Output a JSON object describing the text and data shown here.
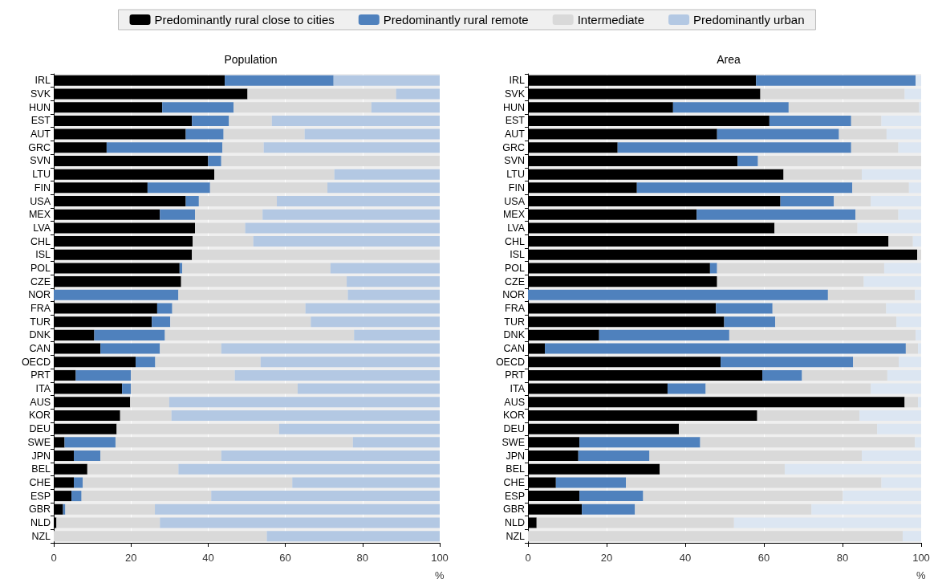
{
  "chart_data": [
    {
      "type": "bar",
      "title": "Population",
      "xlabel": "%",
      "orientation": "horizontal",
      "stacked": true,
      "legend": "top",
      "grid": "x",
      "xlim": [
        0,
        100
      ],
      "xticks": [
        0,
        20,
        40,
        60,
        80,
        100
      ],
      "categories": [
        "IRL",
        "SVK",
        "HUN",
        "EST",
        "AUT",
        "GRC",
        "SVN",
        "LTU",
        "FIN",
        "USA",
        "MEX",
        "LVA",
        "CHL",
        "ISL",
        "POL",
        "CZE",
        "NOR",
        "FRA",
        "TUR",
        "DNK",
        "CAN",
        "OECD",
        "PRT",
        "ITA",
        "AUS",
        "KOR",
        "DEU",
        "SWE",
        "JPN",
        "BEL",
        "CHE",
        "ESP",
        "GBR",
        "NLD",
        "NZL"
      ],
      "series": [
        {
          "name": "Predominantly rural close to cities",
          "color": "#000000",
          "values": [
            44.3,
            50.2,
            28.1,
            35.8,
            34.2,
            13.7,
            40.0,
            41.6,
            24.3,
            34.2,
            27.5,
            36.6,
            36.0,
            35.8,
            32.6,
            33.0,
            0,
            26.8,
            25.4,
            10.5,
            12.1,
            21.2,
            5.7,
            17.7,
            19.8,
            17.2,
            16.3,
            2.8,
            5.2,
            8.7,
            5.2,
            4.6,
            2.4,
            0.7,
            0
          ]
        },
        {
          "name": "Predominantly rural remote",
          "color": "#4f81bd",
          "values": [
            28.2,
            0,
            18.5,
            9.6,
            9.8,
            30.0,
            3.4,
            0,
            16.2,
            3.4,
            9.1,
            0,
            0,
            0,
            0.7,
            0,
            32.3,
            3.9,
            4.8,
            18.3,
            15.4,
            5.1,
            14.3,
            2.3,
            0,
            0,
            0,
            13.2,
            6.9,
            0,
            2.3,
            2.6,
            0.6,
            0,
            0
          ]
        },
        {
          "name": "Intermediate",
          "color": "#d9d9d9",
          "values": [
            0,
            38.5,
            35.7,
            11.1,
            21.0,
            10.7,
            56.6,
            31.1,
            30.4,
            20.2,
            17.5,
            13.0,
            15.7,
            64.2,
            38.4,
            42.9,
            43.9,
            34.5,
            36.4,
            49.0,
            15.9,
            27.3,
            26.9,
            43.2,
            10.1,
            13.3,
            42.1,
            61.5,
            31.3,
            23.6,
            54.3,
            33.6,
            23.2,
            26.8,
            55.2
          ]
        },
        {
          "name": "Predominantly urban",
          "color": "#b3c8e3",
          "values": [
            27.5,
            11.3,
            17.7,
            43.5,
            35.0,
            45.6,
            0,
            27.3,
            29.1,
            42.2,
            45.9,
            50.4,
            48.3,
            0,
            28.3,
            24.1,
            23.8,
            34.8,
            33.4,
            22.2,
            56.6,
            46.4,
            53.1,
            36.8,
            70.1,
            69.5,
            41.6,
            22.5,
            56.6,
            67.7,
            38.2,
            59.2,
            73.8,
            72.5,
            44.8
          ]
        }
      ]
    },
    {
      "type": "bar",
      "title": "Area",
      "xlabel": "%",
      "orientation": "horizontal",
      "stacked": true,
      "grid": "x",
      "xlim": [
        0,
        100
      ],
      "xticks": [
        0,
        20,
        40,
        60,
        80,
        100
      ],
      "categories": [
        "IRL",
        "SVK",
        "HUN",
        "EST",
        "AUT",
        "GRC",
        "SVN",
        "LTU",
        "FIN",
        "USA",
        "MEX",
        "LVA",
        "CHL",
        "ISL",
        "POL",
        "CZE",
        "NOR",
        "FRA",
        "TUR",
        "DNK",
        "CAN",
        "OECD",
        "PRT",
        "ITA",
        "AUS",
        "KOR",
        "DEU",
        "SWE",
        "JPN",
        "BEL",
        "CHE",
        "ESP",
        "GBR",
        "NLD",
        "NZL"
      ],
      "series": [
        {
          "color": "#000000",
          "values": [
            58.0,
            59.1,
            36.9,
            61.4,
            48.1,
            22.8,
            53.3,
            65.0,
            27.7,
            64.2,
            42.9,
            62.7,
            91.7,
            99.0,
            46.3,
            48.1,
            0,
            47.8,
            49.9,
            18.1,
            4.3,
            49.0,
            59.6,
            35.5,
            95.8,
            58.3,
            38.4,
            13.1,
            12.8,
            33.5,
            7.1,
            13.1,
            13.7,
            2.2,
            0
          ]
        },
        {
          "color": "#4f81bd",
          "values": [
            40.6,
            0,
            29.4,
            20.8,
            31.0,
            59.4,
            5.2,
            0,
            54.8,
            13.6,
            40.4,
            0,
            0,
            0,
            1.8,
            0,
            76.3,
            14.4,
            13.0,
            33.1,
            91.8,
            33.7,
            10.1,
            9.7,
            0,
            0,
            0,
            30.7,
            18.1,
            0,
            17.8,
            16.2,
            13.5,
            0,
            0
          ]
        },
        {
          "color": "#d9d9d9",
          "values": [
            0,
            36.7,
            33.2,
            7.7,
            12.1,
            12.0,
            41.5,
            19.9,
            14.4,
            9.4,
            10.9,
            21.1,
            6.2,
            1.0,
            42.5,
            37.3,
            22.1,
            28.9,
            30.8,
            47.4,
            3.1,
            11.6,
            21.7,
            42.0,
            3.4,
            26.0,
            50.4,
            54.6,
            54.0,
            31.8,
            65.0,
            50.8,
            44.9,
            50.2,
            95.3
          ]
        },
        {
          "color": "#dce6f2",
          "values": [
            1.4,
            4.2,
            0.5,
            10.1,
            8.8,
            5.8,
            0,
            15.1,
            3.1,
            12.8,
            5.8,
            16.2,
            2.1,
            0,
            9.4,
            14.6,
            1.6,
            8.9,
            6.3,
            1.4,
            0.8,
            5.7,
            8.6,
            12.8,
            0.8,
            15.7,
            11.2,
            1.6,
            15.1,
            34.7,
            10.1,
            19.9,
            27.9,
            47.6,
            4.7
          ]
        }
      ]
    }
  ]
}
